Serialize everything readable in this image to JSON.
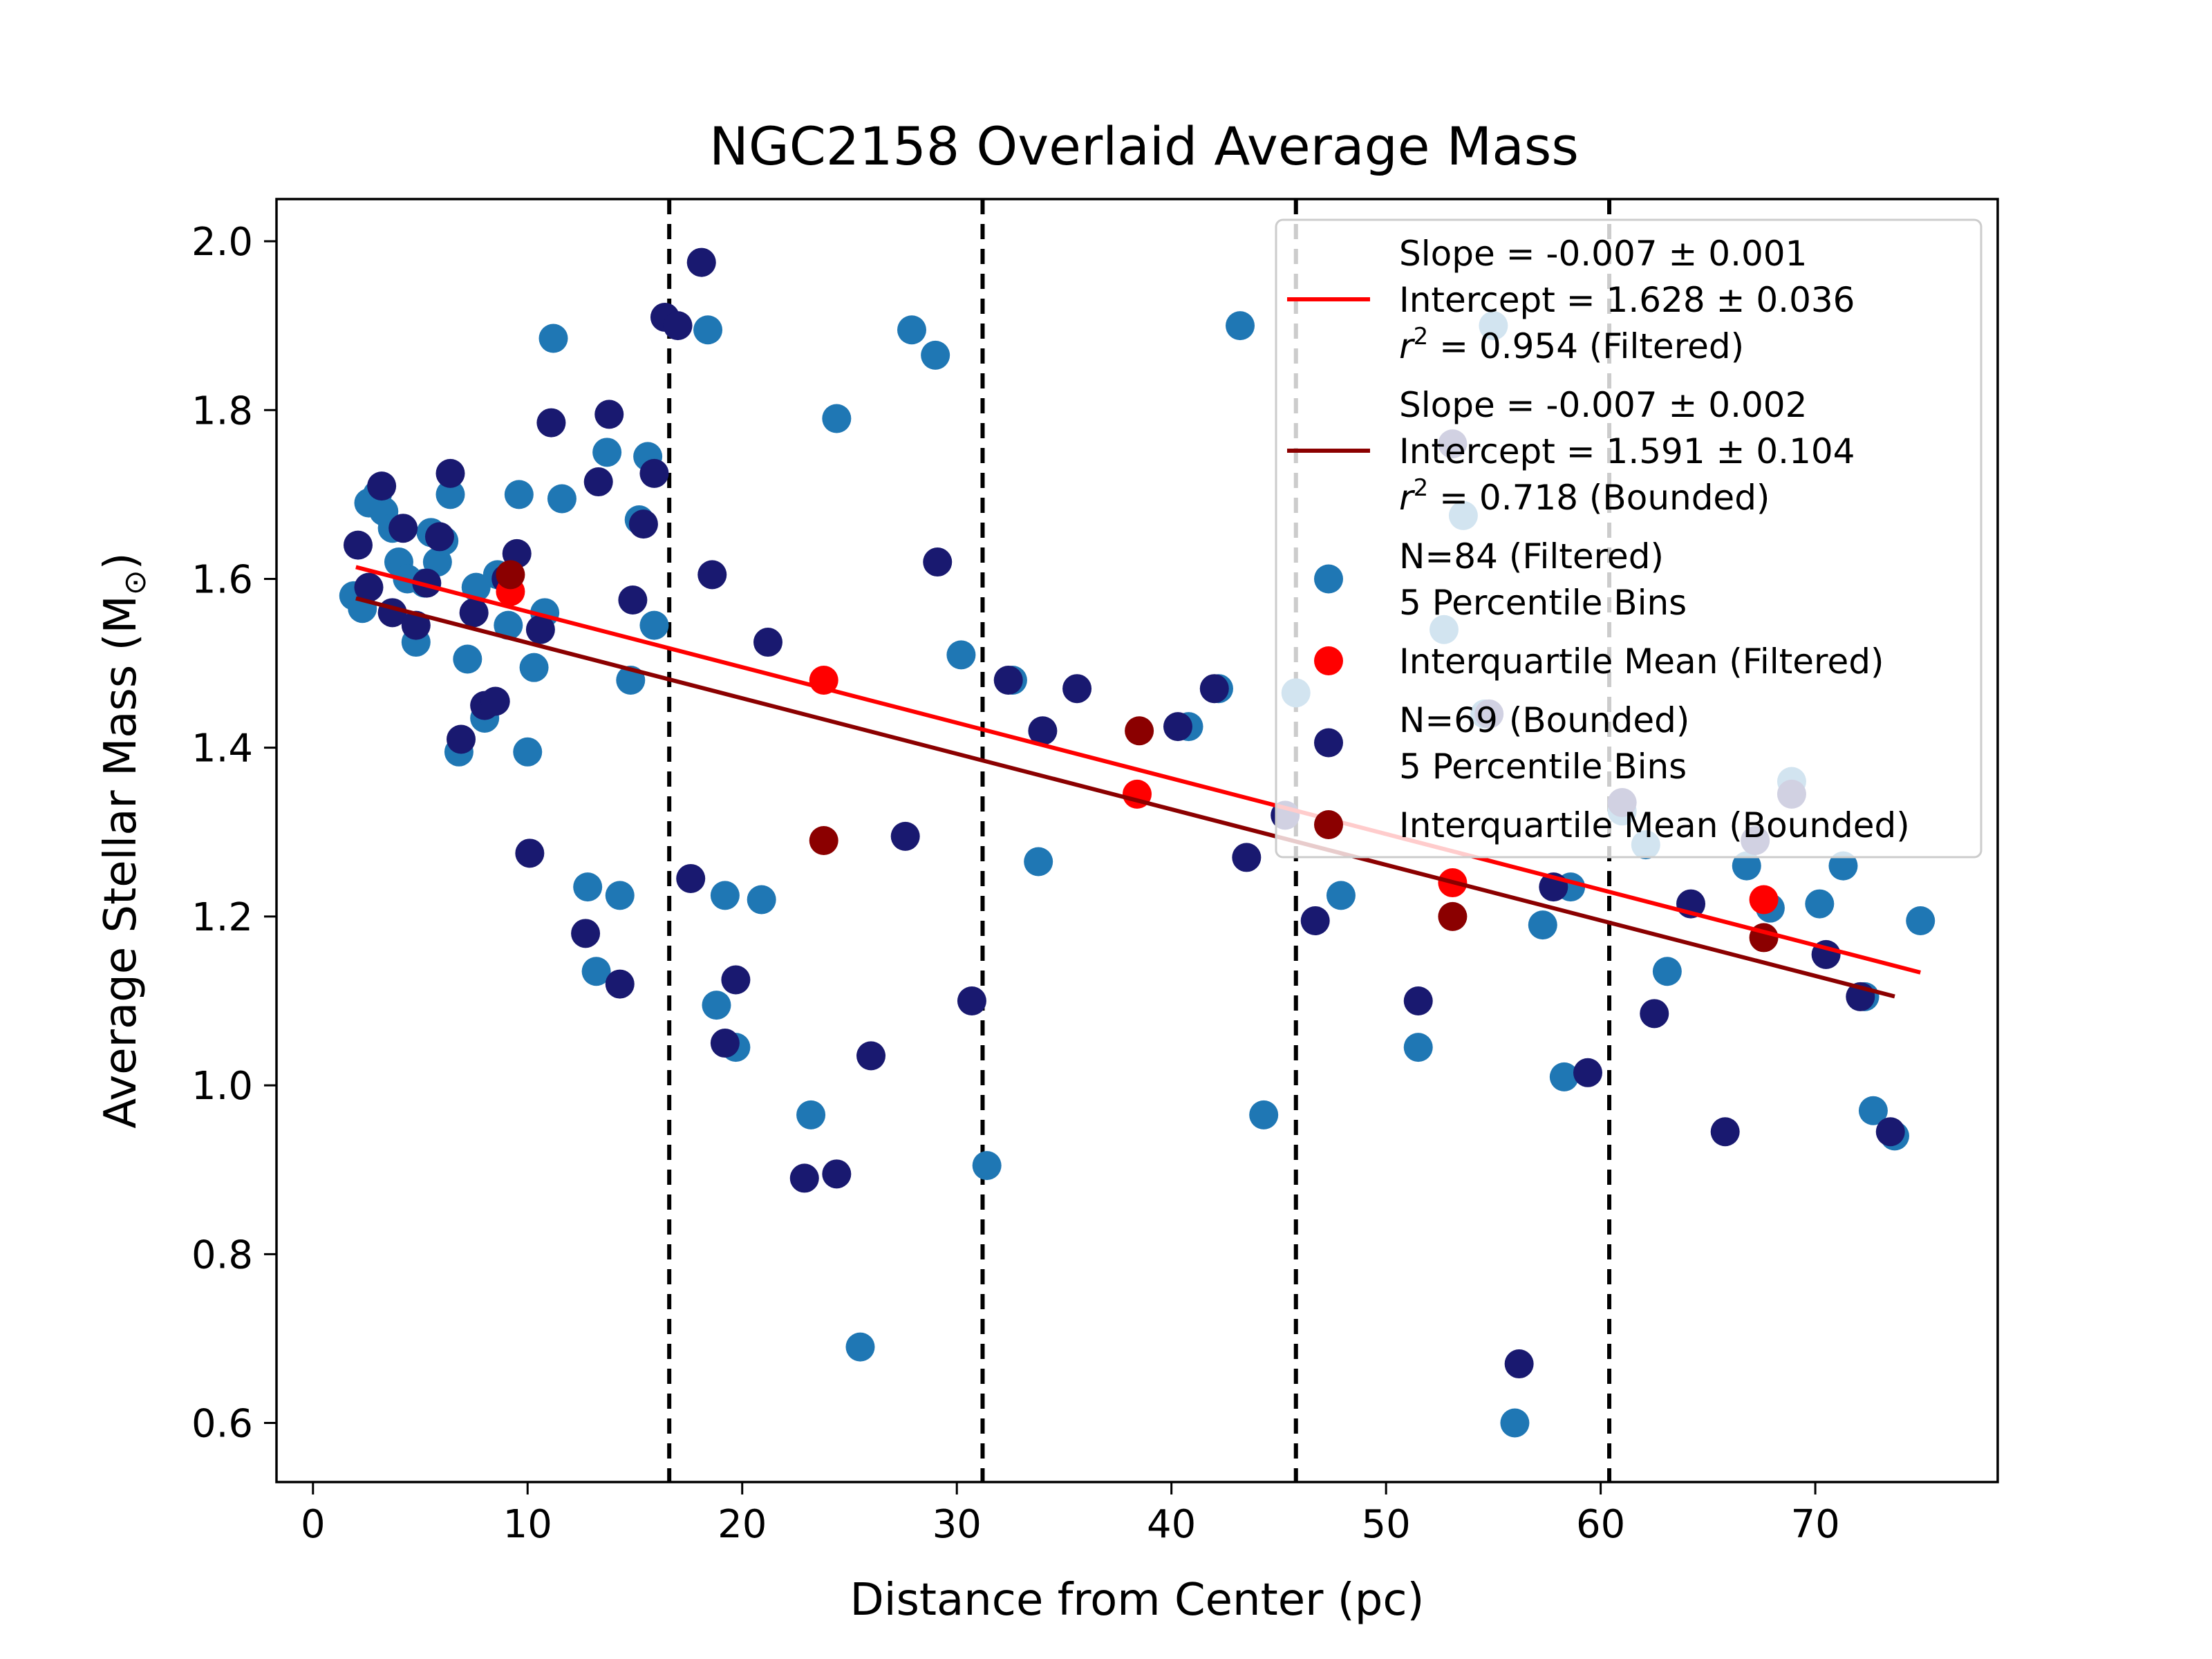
{
  "chart_data": {
    "type": "scatter",
    "title": "NGC2158 Overlaid Average Mass",
    "xlabel": "Distance from Center (pc)",
    "ylabel_text": "Average Stellar Mass (M",
    "ylabel_subscript": "⊙",
    "ylabel_close": ")",
    "xlim": [
      -1.7,
      78.5
    ],
    "ylim": [
      0.53,
      2.05
    ],
    "xticks": [
      0,
      10,
      20,
      30,
      40,
      50,
      60,
      70
    ],
    "yticks": [
      0.6,
      0.8,
      1.0,
      1.2,
      1.4,
      1.6,
      1.8,
      2.0
    ],
    "ytick_labels": [
      "0.6",
      "0.8",
      "1.0",
      "1.2",
      "1.4",
      "1.6",
      "1.8",
      "2.0"
    ],
    "grid": false,
    "legend_position": "upper right",
    "bin_edges": [
      16.6,
      31.2,
      45.8,
      60.4
    ],
    "colors": {
      "filtered": "#1f77b4",
      "bounded": "#191970",
      "filtered_iqm": "#ff0000",
      "bounded_iqm": "#8b0000",
      "filtered_fit": "#ff0000",
      "bounded_fit": "#8b0000",
      "bin_edge": "#000000"
    },
    "series": [
      {
        "name": "N=84 (Filtered) 5 Percentile Bins",
        "points": [
          [
            1.9,
            1.58
          ],
          [
            2.3,
            1.565
          ],
          [
            2.6,
            1.69
          ],
          [
            3.0,
            1.7
          ],
          [
            3.3,
            1.68
          ],
          [
            3.7,
            1.66
          ],
          [
            4.0,
            1.62
          ],
          [
            4.4,
            1.6
          ],
          [
            4.8,
            1.525
          ],
          [
            5.2,
            1.595
          ],
          [
            5.5,
            1.655
          ],
          [
            5.8,
            1.62
          ],
          [
            6.1,
            1.645
          ],
          [
            6.4,
            1.7
          ],
          [
            6.8,
            1.395
          ],
          [
            7.2,
            1.505
          ],
          [
            7.6,
            1.59
          ],
          [
            8.0,
            1.435
          ],
          [
            8.6,
            1.605
          ],
          [
            9.1,
            1.545
          ],
          [
            9.6,
            1.7
          ],
          [
            10.0,
            1.395
          ],
          [
            10.3,
            1.495
          ],
          [
            10.8,
            1.56
          ],
          [
            11.2,
            1.885
          ],
          [
            11.6,
            1.695
          ],
          [
            12.8,
            1.235
          ],
          [
            13.2,
            1.135
          ],
          [
            13.7,
            1.75
          ],
          [
            14.3,
            1.225
          ],
          [
            14.8,
            1.48
          ],
          [
            15.2,
            1.67
          ],
          [
            15.6,
            1.745
          ],
          [
            15.9,
            1.545
          ],
          [
            18.4,
            1.895
          ],
          [
            18.8,
            1.095
          ],
          [
            19.2,
            1.225
          ],
          [
            19.7,
            1.045
          ],
          [
            20.9,
            1.22
          ],
          [
            23.2,
            0.965
          ],
          [
            24.4,
            1.79
          ],
          [
            25.5,
            0.69
          ],
          [
            27.9,
            1.895
          ],
          [
            29.0,
            1.865
          ],
          [
            30.2,
            1.51
          ],
          [
            31.4,
            0.905
          ],
          [
            32.6,
            1.48
          ],
          [
            33.8,
            1.265
          ],
          [
            40.8,
            1.425
          ],
          [
            42.2,
            1.47
          ],
          [
            43.2,
            1.9
          ],
          [
            44.3,
            0.965
          ],
          [
            45.8,
            1.465
          ],
          [
            47.9,
            1.225
          ],
          [
            51.5,
            1.045
          ],
          [
            52.7,
            1.54
          ],
          [
            53.6,
            1.675
          ],
          [
            54.6,
            1.44
          ],
          [
            55.0,
            1.9
          ],
          [
            56.0,
            0.6
          ],
          [
            57.3,
            1.19
          ],
          [
            58.3,
            1.01
          ],
          [
            58.6,
            1.235
          ],
          [
            61.0,
            1.325
          ],
          [
            62.1,
            1.285
          ],
          [
            63.1,
            1.135
          ],
          [
            66.8,
            1.26
          ],
          [
            67.9,
            1.21
          ],
          [
            68.9,
            1.36
          ],
          [
            70.2,
            1.215
          ],
          [
            71.3,
            1.26
          ],
          [
            72.3,
            1.105
          ],
          [
            72.7,
            0.97
          ],
          [
            73.7,
            0.94
          ],
          [
            74.9,
            1.195
          ]
        ]
      },
      {
        "name": "N=69 (Bounded) 5 Percentile Bins",
        "points": [
          [
            2.1,
            1.64
          ],
          [
            2.6,
            1.59
          ],
          [
            3.2,
            1.71
          ],
          [
            3.7,
            1.56
          ],
          [
            4.2,
            1.66
          ],
          [
            4.8,
            1.545
          ],
          [
            5.3,
            1.595
          ],
          [
            5.9,
            1.65
          ],
          [
            6.4,
            1.725
          ],
          [
            6.9,
            1.41
          ],
          [
            7.5,
            1.56
          ],
          [
            8.0,
            1.45
          ],
          [
            8.5,
            1.455
          ],
          [
            9.0,
            1.6
          ],
          [
            9.5,
            1.63
          ],
          [
            10.1,
            1.275
          ],
          [
            10.6,
            1.54
          ],
          [
            11.1,
            1.785
          ],
          [
            12.7,
            1.18
          ],
          [
            13.3,
            1.715
          ],
          [
            13.8,
            1.795
          ],
          [
            14.3,
            1.12
          ],
          [
            14.9,
            1.575
          ],
          [
            15.4,
            1.665
          ],
          [
            15.9,
            1.725
          ],
          [
            16.4,
            1.91
          ],
          [
            17.0,
            1.9
          ],
          [
            17.6,
            1.245
          ],
          [
            18.1,
            1.975
          ],
          [
            18.6,
            1.605
          ],
          [
            19.2,
            1.05
          ],
          [
            19.7,
            1.125
          ],
          [
            21.2,
            1.525
          ],
          [
            22.9,
            0.89
          ],
          [
            24.4,
            0.895
          ],
          [
            26.0,
            1.035
          ],
          [
            27.6,
            1.295
          ],
          [
            29.1,
            1.62
          ],
          [
            30.7,
            1.1
          ],
          [
            32.4,
            1.48
          ],
          [
            34.0,
            1.42
          ],
          [
            35.6,
            1.47
          ],
          [
            40.3,
            1.425
          ],
          [
            42.0,
            1.47
          ],
          [
            43.5,
            1.27
          ],
          [
            45.3,
            1.32
          ],
          [
            46.7,
            1.195
          ],
          [
            51.5,
            1.1
          ],
          [
            53.1,
            1.76
          ],
          [
            54.8,
            1.44
          ],
          [
            56.2,
            0.67
          ],
          [
            57.8,
            1.235
          ],
          [
            59.4,
            1.015
          ],
          [
            61.0,
            1.335
          ],
          [
            62.5,
            1.085
          ],
          [
            64.2,
            1.215
          ],
          [
            65.8,
            0.945
          ],
          [
            67.2,
            1.29
          ],
          [
            68.9,
            1.345
          ],
          [
            70.5,
            1.155
          ],
          [
            72.1,
            1.105
          ],
          [
            73.5,
            0.945
          ]
        ]
      },
      {
        "name": "Interquartile Mean (Filtered)",
        "points": [
          [
            9.2,
            1.585
          ],
          [
            23.8,
            1.48
          ],
          [
            38.4,
            1.345
          ],
          [
            53.1,
            1.24
          ],
          [
            67.6,
            1.22
          ]
        ]
      },
      {
        "name": "Interquartile Mean (Bounded)",
        "points": [
          [
            9.2,
            1.605
          ],
          [
            23.8,
            1.29
          ],
          [
            38.5,
            1.42
          ],
          [
            53.1,
            1.2
          ],
          [
            67.6,
            1.175
          ]
        ]
      }
    ],
    "fit_lines": [
      {
        "x": [
          2.0,
          74.9
        ],
        "y": [
          1.614,
          1.1337
        ],
        "color_key": "filtered_fit"
      },
      {
        "x": [
          2.0,
          73.7
        ],
        "y": [
          1.577,
          1.1053
        ],
        "color_key": "bounded_fit"
      }
    ],
    "legend": [
      {
        "kind": "line",
        "color_key": "filtered_fit",
        "lines": [
          "Slope = -0.007 ± 0.001",
          "Intercept = 1.628 ± 0.036",
          "r² = 0.954 (Filtered)"
        ]
      },
      {
        "kind": "line",
        "color_key": "bounded_fit",
        "lines": [
          "Slope = -0.007 ± 0.002",
          "Intercept = 1.591 ± 0.104",
          "r² = 0.718 (Bounded)"
        ]
      },
      {
        "kind": "marker",
        "color_key": "filtered",
        "lines": [
          "N=84 (Filtered)",
          "5 Percentile Bins"
        ]
      },
      {
        "kind": "marker",
        "color_key": "filtered_iqm",
        "lines": [
          "Interquartile Mean (Filtered)"
        ]
      },
      {
        "kind": "marker",
        "color_key": "bounded",
        "lines": [
          "N=69 (Bounded)",
          "5 Percentile Bins"
        ]
      },
      {
        "kind": "marker",
        "color_key": "bounded_iqm",
        "lines": [
          "Interquartile Mean (Bounded)"
        ]
      }
    ]
  }
}
